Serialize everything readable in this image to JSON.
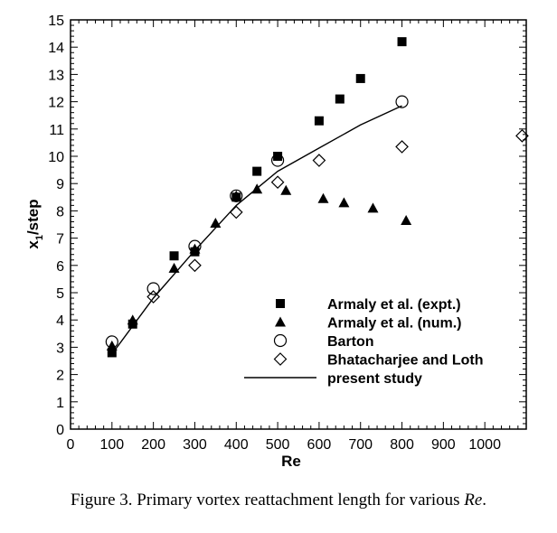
{
  "caption": {
    "prefix": "Figure 3. Primary vortex reattachment length for various ",
    "italic": "Re",
    "suffix": "."
  },
  "chart_data": {
    "type": "scatter",
    "xlabel": "Re",
    "ylabel_main": "x",
    "ylabel_sub": "1",
    "ylabel_rest": "/step",
    "xlim": [
      0,
      1100
    ],
    "ylim": [
      0,
      15
    ],
    "xticks": [
      0,
      100,
      200,
      300,
      400,
      500,
      600,
      700,
      800,
      900,
      1000
    ],
    "yticks": [
      0,
      1,
      2,
      3,
      4,
      5,
      6,
      7,
      8,
      9,
      10,
      11,
      12,
      13,
      14,
      15
    ],
    "legend_position": "lower-right",
    "series": [
      {
        "name": "Armaly et al. (expt.)",
        "marker": "filled-square",
        "points": [
          [
            100,
            2.8
          ],
          [
            150,
            3.85
          ],
          [
            250,
            6.35
          ],
          [
            300,
            6.5
          ],
          [
            400,
            8.5
          ],
          [
            450,
            9.45
          ],
          [
            500,
            10.0
          ],
          [
            600,
            11.3
          ],
          [
            650,
            12.1
          ],
          [
            700,
            12.85
          ],
          [
            800,
            14.2
          ]
        ]
      },
      {
        "name": "Armaly et al. (num.)",
        "marker": "filled-triangle",
        "points": [
          [
            100,
            3.05
          ],
          [
            150,
            4.0
          ],
          [
            250,
            5.9
          ],
          [
            300,
            6.6
          ],
          [
            350,
            7.55
          ],
          [
            400,
            8.55
          ],
          [
            450,
            8.8
          ],
          [
            520,
            8.75
          ],
          [
            610,
            8.45
          ],
          [
            660,
            8.3
          ],
          [
            730,
            8.1
          ],
          [
            810,
            7.65
          ]
        ]
      },
      {
        "name": "Barton",
        "marker": "open-circle",
        "points": [
          [
            100,
            3.2
          ],
          [
            200,
            5.15
          ],
          [
            300,
            6.7
          ],
          [
            400,
            8.55
          ],
          [
            500,
            9.85
          ],
          [
            800,
            12.0
          ]
        ]
      },
      {
        "name": "Bhatacharjee and Loth",
        "marker": "open-diamond",
        "points": [
          [
            200,
            4.85
          ],
          [
            300,
            6.0
          ],
          [
            400,
            7.95
          ],
          [
            500,
            9.05
          ],
          [
            600,
            9.85
          ],
          [
            800,
            10.35
          ],
          [
            1090,
            10.75
          ]
        ]
      },
      {
        "name": "present study",
        "marker": "line",
        "points": [
          [
            100,
            2.75
          ],
          [
            200,
            4.8
          ],
          [
            300,
            6.55
          ],
          [
            400,
            8.2
          ],
          [
            500,
            9.45
          ],
          [
            600,
            10.3
          ],
          [
            700,
            11.15
          ],
          [
            800,
            11.85
          ]
        ]
      }
    ]
  }
}
